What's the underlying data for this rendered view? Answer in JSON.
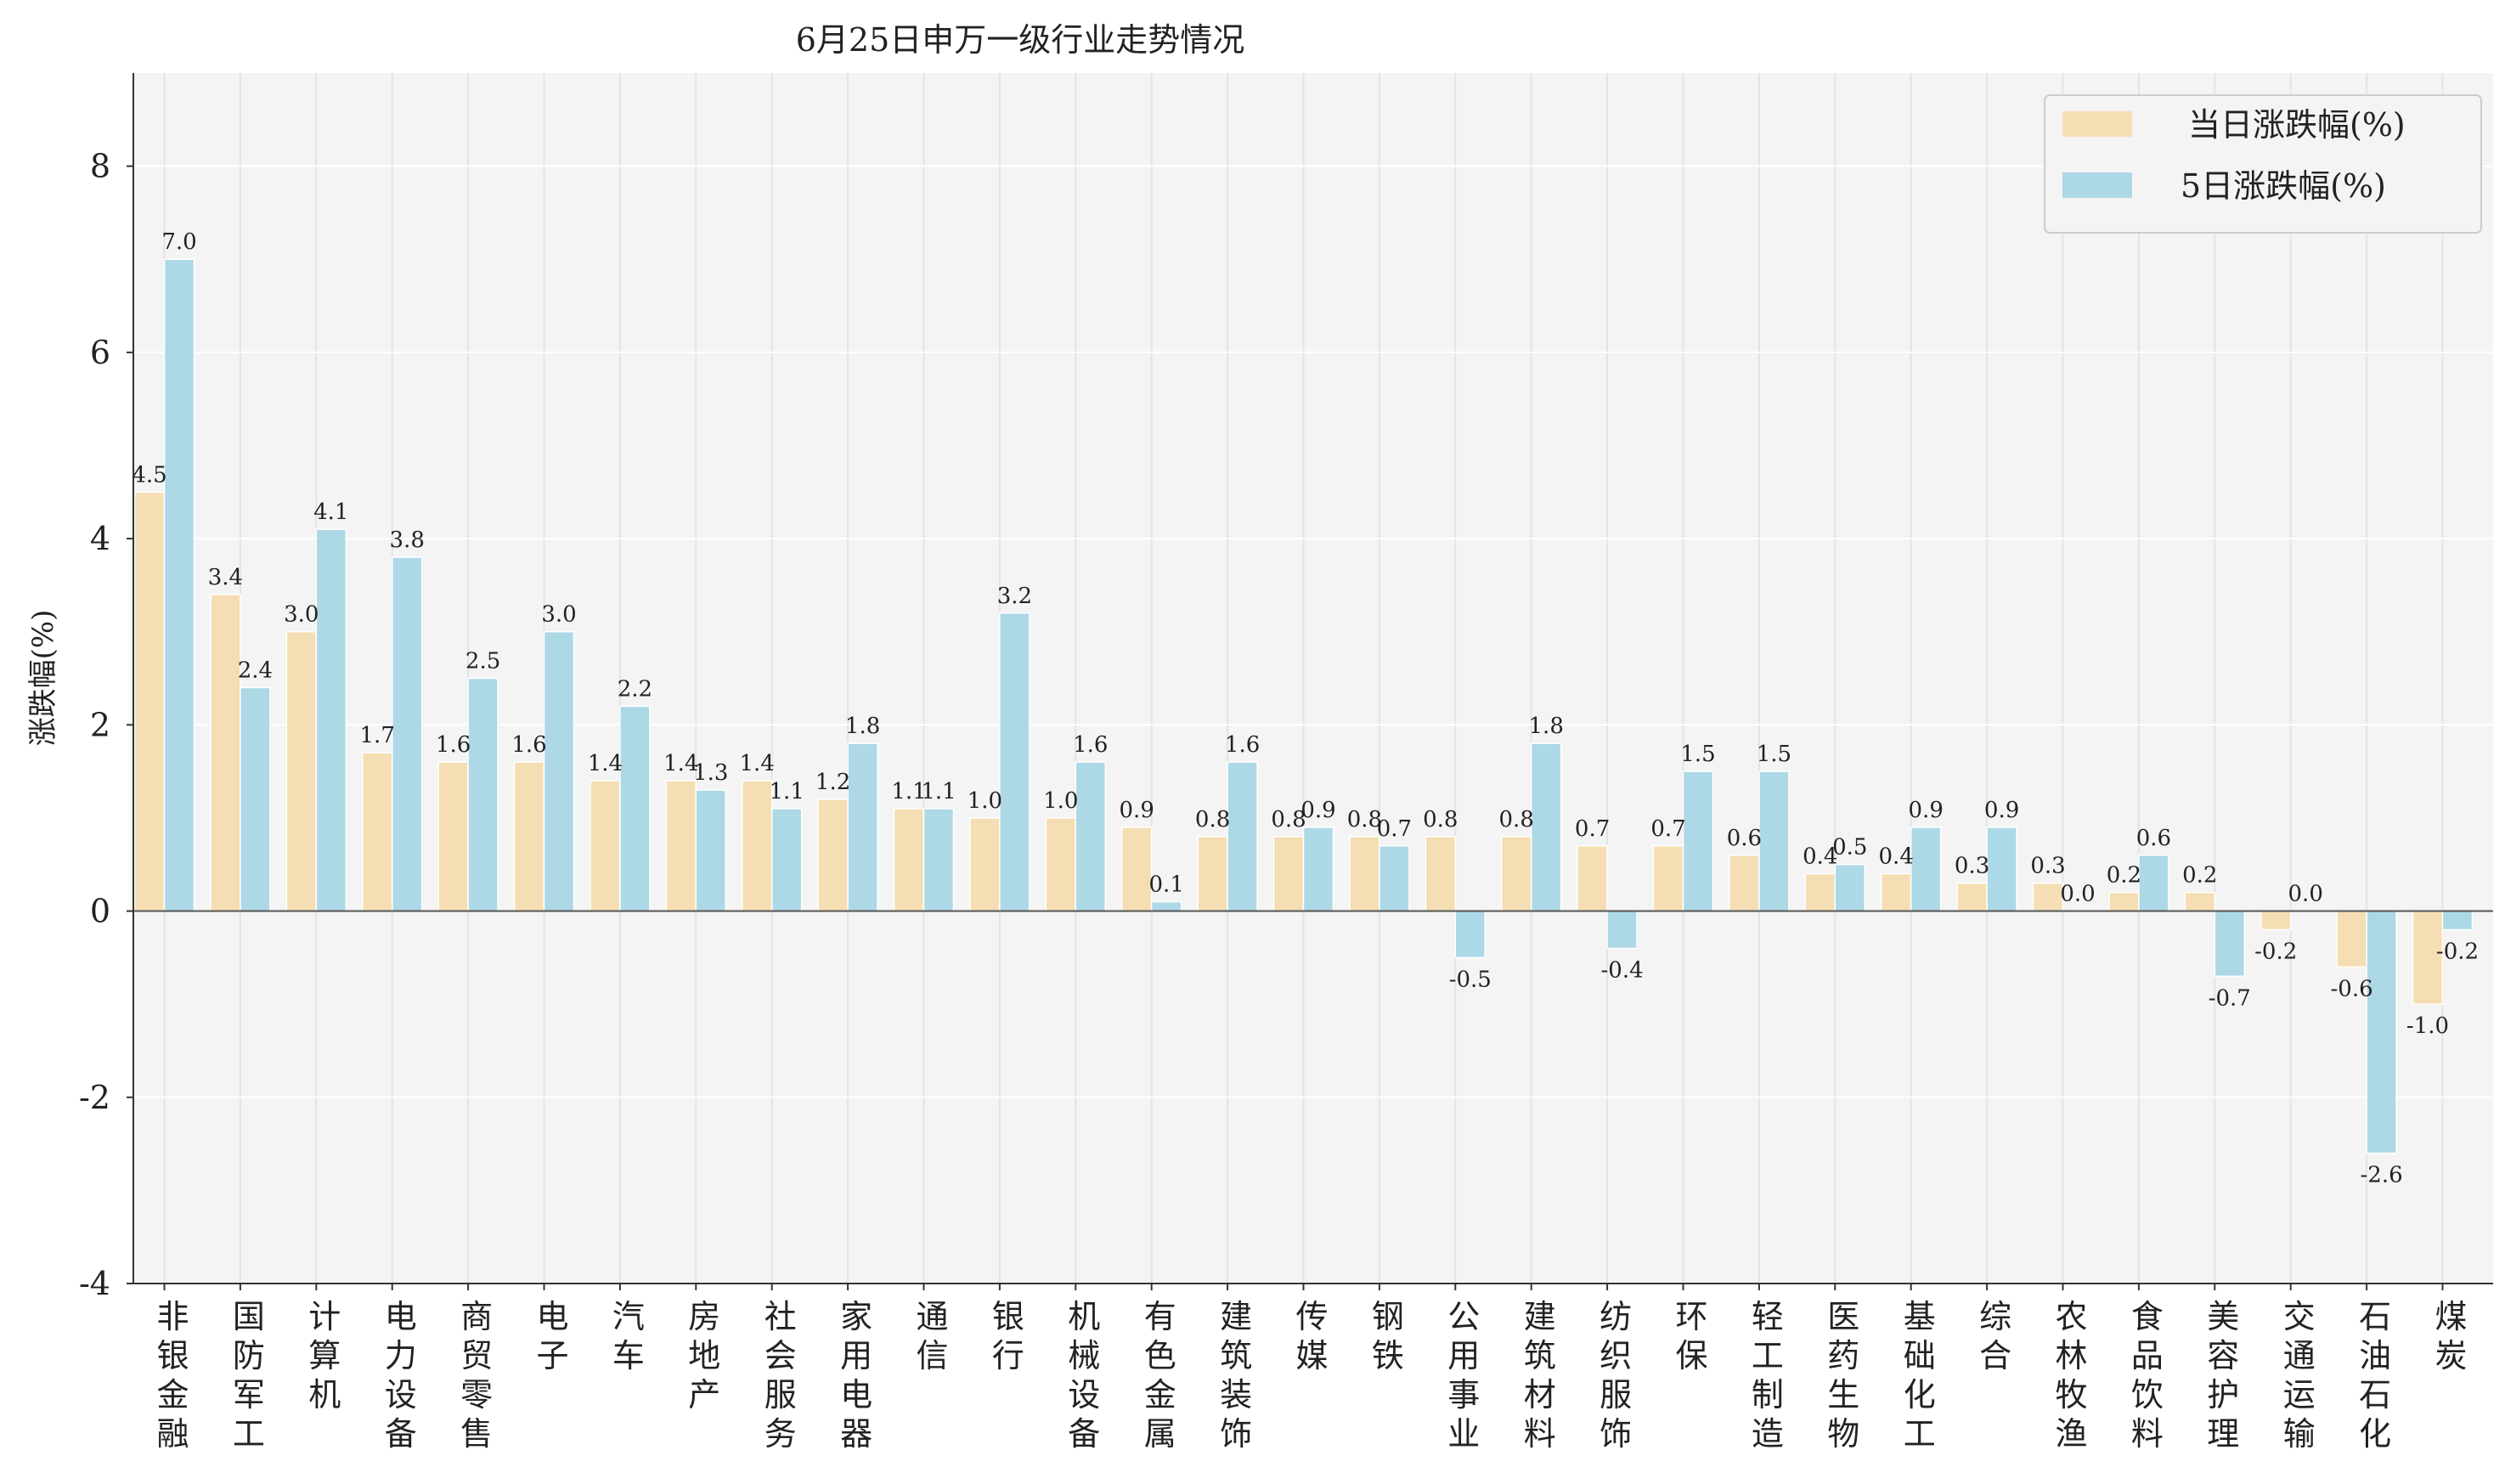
{
  "chart_data": {
    "type": "bar",
    "title": "6月25日申万一级行业走势情况",
    "xlabel": "",
    "ylabel": "涨跌幅(%)",
    "ylim": [
      -4,
      9
    ],
    "yticks": [
      "-4",
      "-2",
      "0",
      "2",
      "4",
      "6",
      "8"
    ],
    "grid": true,
    "legend_position": "top-right",
    "categories": [
      "非银金融",
      "国防军工",
      "计算机",
      "电力设备",
      "商贸零售",
      "电子",
      "汽车",
      "房地产",
      "社会服务",
      "家用电器",
      "通信",
      "银行",
      "机械设备",
      "有色金属",
      "建筑装饰",
      "传媒",
      "钢铁",
      "公用事业",
      "建筑材料",
      "纺织服饰",
      "环保",
      "轻工制造",
      "医药生物",
      "基础化工",
      "综合",
      "农林牧渔",
      "食品饮料",
      "美容护理",
      "交通运输",
      "石油石化",
      "煤炭"
    ],
    "series": [
      {
        "name": "当日涨跌幅(%)",
        "color": "#f5deb3",
        "values": [
          4.5,
          3.4,
          3.0,
          1.7,
          1.6,
          1.6,
          1.4,
          1.4,
          1.4,
          1.2,
          1.1,
          1.0,
          1.0,
          0.9,
          0.8,
          0.8,
          0.8,
          0.8,
          0.8,
          0.7,
          0.7,
          0.6,
          0.4,
          0.4,
          0.3,
          0.3,
          0.2,
          0.2,
          -0.2,
          -0.6,
          -1.0
        ],
        "labels": [
          "4.5",
          "3.4",
          "3.0",
          "1.7",
          "1.6",
          "1.6",
          "1.4",
          "1.4",
          "1.4",
          "1.2",
          "1.1",
          "1.0",
          "1.0",
          "0.9",
          "0.8",
          "0.8",
          "0.8",
          "0.8",
          "0.8",
          "0.7",
          "0.7",
          "0.6",
          "0.4",
          "0.4",
          "0.3",
          "0.3",
          "0.2",
          "0.2",
          "-0.2",
          "-0.6",
          "-1.0"
        ]
      },
      {
        "name": "5日涨跌幅(%)",
        "color": "#add8e6",
        "values": [
          7.0,
          2.4,
          4.1,
          3.8,
          2.5,
          3.0,
          2.2,
          1.3,
          1.1,
          1.8,
          1.1,
          3.2,
          1.6,
          0.1,
          1.6,
          0.9,
          0.7,
          -0.5,
          1.8,
          -0.4,
          1.5,
          1.5,
          0.5,
          0.9,
          0.9,
          0.0,
          0.6,
          -0.7,
          0.0,
          -2.6,
          -0.2
        ],
        "labels": [
          "7.0",
          "2.4",
          "4.1",
          "3.8",
          "2.5",
          "3.0",
          "2.2",
          "1.3",
          "1.1",
          "1.8",
          "1.1",
          "3.2",
          "1.6",
          "0.1",
          "1.6",
          "0.9",
          "0.7",
          "-0.5",
          "1.8",
          "-0.4",
          "1.5",
          "1.5",
          "0.5",
          "0.9",
          "0.9",
          "0.0",
          "0.6",
          "-0.7",
          "0.0",
          "-2.6",
          "-0.2"
        ]
      }
    ]
  }
}
